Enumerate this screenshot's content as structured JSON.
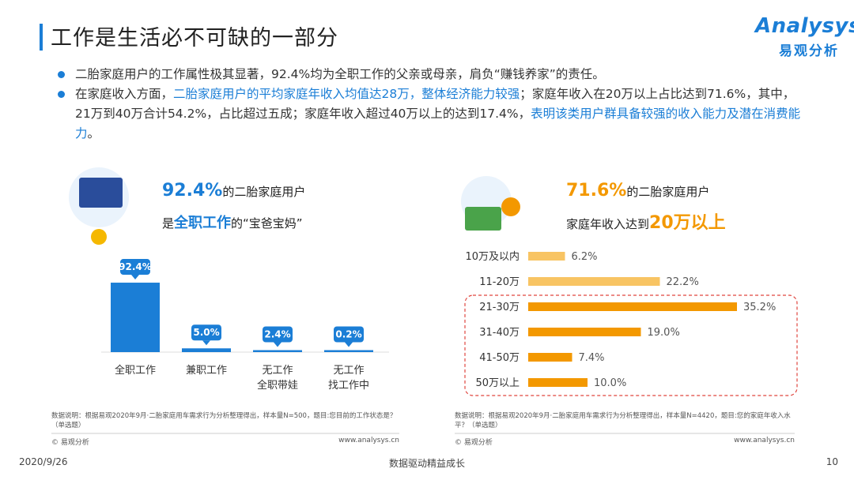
{
  "header": {
    "title": "工作是生活必不可缺的一部分",
    "logo": "Analysys",
    "logo_sub": "易观分析"
  },
  "bullets": [
    [
      {
        "text": "二胎家庭用户的工作属性极其显著，92.4%均为全职工作的父亲或母亲，肩负“赚钱养家”的责任。",
        "highlight": false
      }
    ],
    [
      {
        "text": "在家庭收入方面，",
        "highlight": false
      },
      {
        "text": "二胎家庭用户的平均家庭年收入均值达28万，整体经济能力较强",
        "highlight": true
      },
      {
        "text": "；家庭年收入在20万以上占比达到71.6%，其中，21万到40万合计54.2%，占比超过五成；家庭年收入超过40万以上的达到17.4%，",
        "highlight": false
      },
      {
        "text": "表明该类用户群具备较强的收入能力及潜在消费能力",
        "highlight": true
      },
      {
        "text": "。",
        "highlight": false
      }
    ]
  ],
  "chart_data": [
    {
      "type": "bar",
      "callout": [
        [
          {
            "text": "92.4%",
            "emphasis": true,
            "size": 22
          },
          {
            "text": "的二胎家庭用户",
            "emphasis": false
          }
        ],
        [
          {
            "text": "是",
            "emphasis": false
          },
          {
            "text": "全职工作",
            "emphasis": true,
            "size": 18
          },
          {
            "text": "的“宝爸宝妈”",
            "emphasis": false
          }
        ]
      ],
      "emphasis_color": "#1b7ed6",
      "categories": [
        "全职工作",
        "兼职工作",
        "无工作\n全职带娃",
        "无工作\n找工作中"
      ],
      "values": [
        92.4,
        5.0,
        2.4,
        0.2
      ],
      "value_labels": [
        "92.4%",
        "5.0%",
        "2.4%",
        "0.2%"
      ],
      "color": "#1b7ed6",
      "note": "数据说明：根据易观2020年9月·二胎家庭用车需求行为分析整理得出，样本量N=500，题目:您目前的工作状态是？（单选题）",
      "copyright": "© 易观分析",
      "url": "www.analysys.cn"
    },
    {
      "type": "barh",
      "callout": [
        [
          {
            "text": "71.6%",
            "emphasis": true,
            "size": 22
          },
          {
            "text": "的二胎家庭用户",
            "emphasis": false
          }
        ],
        [
          {
            "text": "家庭年收入达到",
            "emphasis": false
          },
          {
            "text": "20万以上",
            "emphasis": true,
            "size": 22
          }
        ]
      ],
      "emphasis_color": "#f39800",
      "categories": [
        "10万及以内",
        "11-20万",
        "21-30万",
        "31-40万",
        "41-50万",
        "50万以上"
      ],
      "values": [
        6.2,
        22.2,
        35.2,
        19.0,
        7.4,
        10.0
      ],
      "value_labels": [
        "6.2%",
        "22.2%",
        "35.2%",
        "19.0%",
        "7.4%",
        "10.0%"
      ],
      "colors": [
        "#f8c463",
        "#f8c463",
        "#f39800",
        "#f39800",
        "#f39800",
        "#f39800"
      ],
      "note": "数据说明：根据易观2020年9月·二胎家庭用车需求行为分析整理得出，样本量N=4420，题目:您的家庭年收入水平？（单选题）",
      "copyright": "© 易观分析",
      "url": "www.analysys.cn"
    }
  ],
  "footer": {
    "date": "2020/9/26",
    "slogan": "数据驱动精益成长",
    "page": "10"
  }
}
